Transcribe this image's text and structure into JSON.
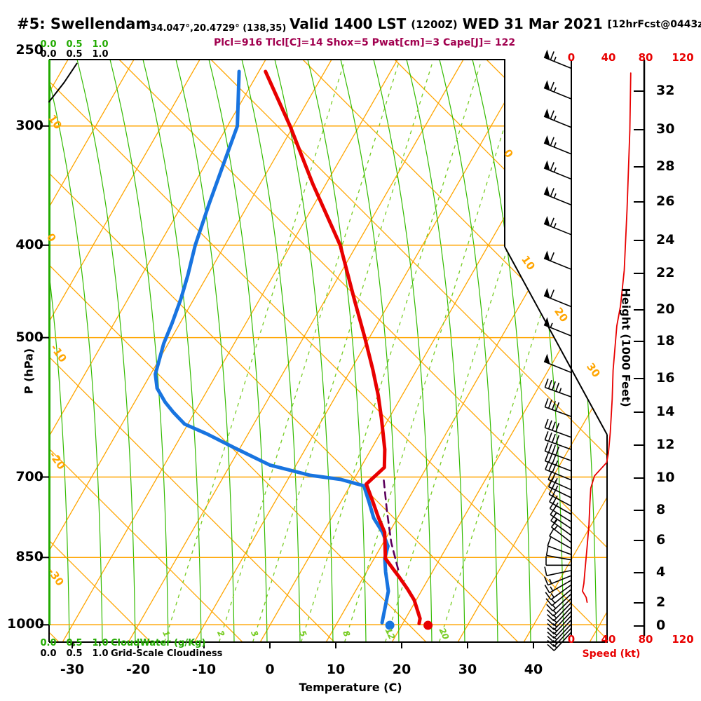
{
  "header": {
    "station_label": "#5: Swellendam",
    "coords": "-34.047°,20.4729° (138,35)",
    "valid": "Valid 1400 LST",
    "zulu": "(1200Z)",
    "date": "WED 31 Mar 2021",
    "fcst": "[12hrFcst@0443z]",
    "params": "Plcl=916 Tlcl[C]=14 Shox=5 Pwat[cm]=3 Cape[J]= 122"
  },
  "axes": {
    "pressure": {
      "label": "P (hPa)",
      "ticks": [
        "250",
        "300",
        "400",
        "500",
        "700",
        "850",
        "1000"
      ]
    },
    "temperature": {
      "label": "Temperature (C)",
      "ticks": [
        "-30",
        "-20",
        "-10",
        "0",
        "10",
        "20",
        "30",
        "40"
      ]
    },
    "height": {
      "label": "Height (1000 Feet)",
      "ticks": [
        "32",
        "30",
        "28",
        "26",
        "24",
        "22",
        "20",
        "18",
        "16",
        "14",
        "12",
        "10",
        "8",
        "6",
        "4",
        "2",
        "0"
      ]
    },
    "speed": {
      "label": "Speed (kt)",
      "ticks": [
        "0",
        "40",
        "80",
        "120"
      ]
    },
    "cloudwater": {
      "label": "CloudWater (g/Kg)",
      "ticks": [
        "0.0",
        "0.5",
        "1.0"
      ]
    },
    "cloudiness": {
      "label": "Grid-Scale Cloudiness",
      "ticks": [
        "0.0",
        "0.5",
        "1.0"
      ]
    }
  },
  "colors": {
    "temperature_curve": "#E80000",
    "dewpoint_curve": "#1874E0",
    "parcel_path": "#5C005C",
    "grid_orange": "#FFA500",
    "moist_green": "#33BB00",
    "mixing_green": "#77CC22",
    "axis_green": "#22AA00",
    "params_text": "#A1004F",
    "speed_red": "#E80000",
    "frame_black": "#000000"
  },
  "chart_data": {
    "type": "skewt_log_p_sounding",
    "title": "#5: Swellendam sounding, Valid 1400 LST (1200Z) WED 31 Mar 2021, 12hr forecast",
    "pressure_range_hpa": [
      250,
      1000
    ],
    "temperature_axis_c": [
      -30,
      40
    ],
    "height_axis_kft": [
      0,
      33
    ],
    "speed_axis_kt": [
      0,
      120
    ],
    "indices": {
      "Plcl": 916,
      "Tlcl_C": 14,
      "Shox": 5,
      "Pwat_cm": 3,
      "Cape_J": 122
    },
    "temperature_profile_p_T": [
      [
        263,
        -49
      ],
      [
        300,
        -40.5
      ],
      [
        345,
        -32
      ],
      [
        400,
        -22.5
      ],
      [
        457,
        -15.5
      ],
      [
        500,
        -10.7
      ],
      [
        540,
        -6.7
      ],
      [
        575,
        -3.6
      ],
      [
        608,
        -1.1
      ],
      [
        655,
        2.1
      ],
      [
        684,
        3.6
      ],
      [
        712,
        2.3
      ],
      [
        740,
        4.6
      ],
      [
        771,
        7.0
      ],
      [
        800,
        9.3
      ],
      [
        852,
        11.7
      ],
      [
        873,
        13.7
      ],
      [
        891,
        15.4
      ],
      [
        917,
        17.7
      ],
      [
        942,
        19.7
      ],
      [
        985,
        22.2
      ],
      [
        997,
        22.5
      ]
    ],
    "dewpoint_profile_p_T": [
      [
        263,
        -53
      ],
      [
        300,
        -48.5
      ],
      [
        326,
        -47.4
      ],
      [
        362,
        -46
      ],
      [
        400,
        -44.5
      ],
      [
        430,
        -43
      ],
      [
        455,
        -42
      ],
      [
        483,
        -41.2
      ],
      [
        507,
        -40.7
      ],
      [
        526,
        -40
      ],
      [
        546,
        -39.3
      ],
      [
        565,
        -37.8
      ],
      [
        584,
        -35.4
      ],
      [
        599,
        -33.2
      ],
      [
        616,
        -30.5
      ],
      [
        631,
        -26.2
      ],
      [
        653,
        -20.7
      ],
      [
        680,
        -14
      ],
      [
        697,
        -7
      ],
      [
        704,
        -2
      ],
      [
        715,
        2.1
      ],
      [
        745,
        4.4
      ],
      [
        773,
        6.4
      ],
      [
        800,
        9.0
      ],
      [
        827,
        11.0
      ],
      [
        852,
        11.6
      ],
      [
        880,
        12.9
      ],
      [
        922,
        15.0
      ],
      [
        995,
        16.8
      ]
    ],
    "parcel_path_p_T": [
      [
        875,
        14.6
      ],
      [
        820,
        11.2
      ],
      [
        760,
        7.8
      ],
      [
        700,
        4.3
      ]
    ],
    "surface_markers": {
      "temperature_c": 24,
      "dewpoint_c": 18
    },
    "wind_speed_profile_p_kt": [
      [
        264,
        64
      ],
      [
        303,
        63
      ],
      [
        367,
        60
      ],
      [
        425,
        57
      ],
      [
        463,
        53
      ],
      [
        486,
        49
      ],
      [
        541,
        45
      ],
      [
        580,
        44
      ],
      [
        628,
        42
      ],
      [
        660,
        40
      ],
      [
        676,
        38
      ],
      [
        698,
        25
      ],
      [
        719,
        21
      ],
      [
        745,
        20
      ],
      [
        785,
        19
      ],
      [
        829,
        17
      ],
      [
        870,
        15
      ],
      [
        905,
        13.5
      ],
      [
        922,
        12
      ],
      [
        936,
        16
      ],
      [
        947,
        17
      ]
    ],
    "wind_barbs_p_kt_angle": [
      [
        261,
        65,
        22
      ],
      [
        281,
        65,
        22
      ],
      [
        301,
        65,
        22
      ],
      [
        321,
        65,
        22
      ],
      [
        341,
        65,
        22
      ],
      [
        363,
        65,
        22
      ],
      [
        390,
        65,
        22
      ],
      [
        424,
        60,
        22
      ],
      [
        464,
        60,
        22
      ],
      [
        498,
        55,
        22
      ],
      [
        544,
        50,
        22
      ],
      [
        577,
        45,
        20
      ],
      [
        605,
        40,
        20
      ],
      [
        636,
        40,
        20
      ],
      [
        655,
        40,
        20
      ],
      [
        673,
        40,
        20
      ],
      [
        690,
        35,
        21
      ],
      [
        705,
        30,
        22
      ],
      [
        722,
        28,
        24
      ],
      [
        736,
        25,
        26
      ],
      [
        751,
        22,
        28
      ],
      [
        766,
        20,
        30
      ],
      [
        780,
        20,
        32
      ],
      [
        793,
        18,
        34
      ],
      [
        806,
        15,
        36
      ],
      [
        820,
        15,
        38
      ],
      [
        832,
        12,
        30
      ],
      [
        844,
        10,
        20
      ],
      [
        855,
        10,
        10
      ],
      [
        866,
        10,
        0
      ],
      [
        877,
        12,
        -12
      ],
      [
        888,
        15,
        -22
      ],
      [
        898,
        15,
        -30
      ],
      [
        908,
        15,
        -36
      ],
      [
        918,
        15,
        -40
      ],
      [
        928,
        15,
        -43
      ],
      [
        938,
        15,
        -45
      ],
      [
        948,
        15,
        -46
      ],
      [
        958,
        15,
        -47
      ],
      [
        968,
        15,
        -47
      ],
      [
        978,
        15,
        -47
      ],
      [
        988,
        15,
        -47
      ],
      [
        998,
        15,
        -47
      ],
      [
        1008,
        15,
        -47
      ],
      [
        1018,
        15,
        -47
      ]
    ],
    "cloudiness_profile_p_frac": [
      [
        283,
        0
      ],
      [
        270,
        0.3
      ],
      [
        258,
        0.55
      ]
    ],
    "cloudwater_profile_p_gkg": [
      [
        1000,
        0
      ],
      [
        250,
        0
      ]
    ],
    "isotherm_edge_labels_left": [
      "10",
      "0",
      "-10",
      "-20",
      "-30"
    ],
    "isotherm_edge_labels_right": [
      "0",
      "10",
      "20",
      "30"
    ],
    "mixing_ratio_labels_gkg": [
      "1",
      "2",
      "3",
      "5",
      "8",
      "12",
      "20"
    ]
  }
}
